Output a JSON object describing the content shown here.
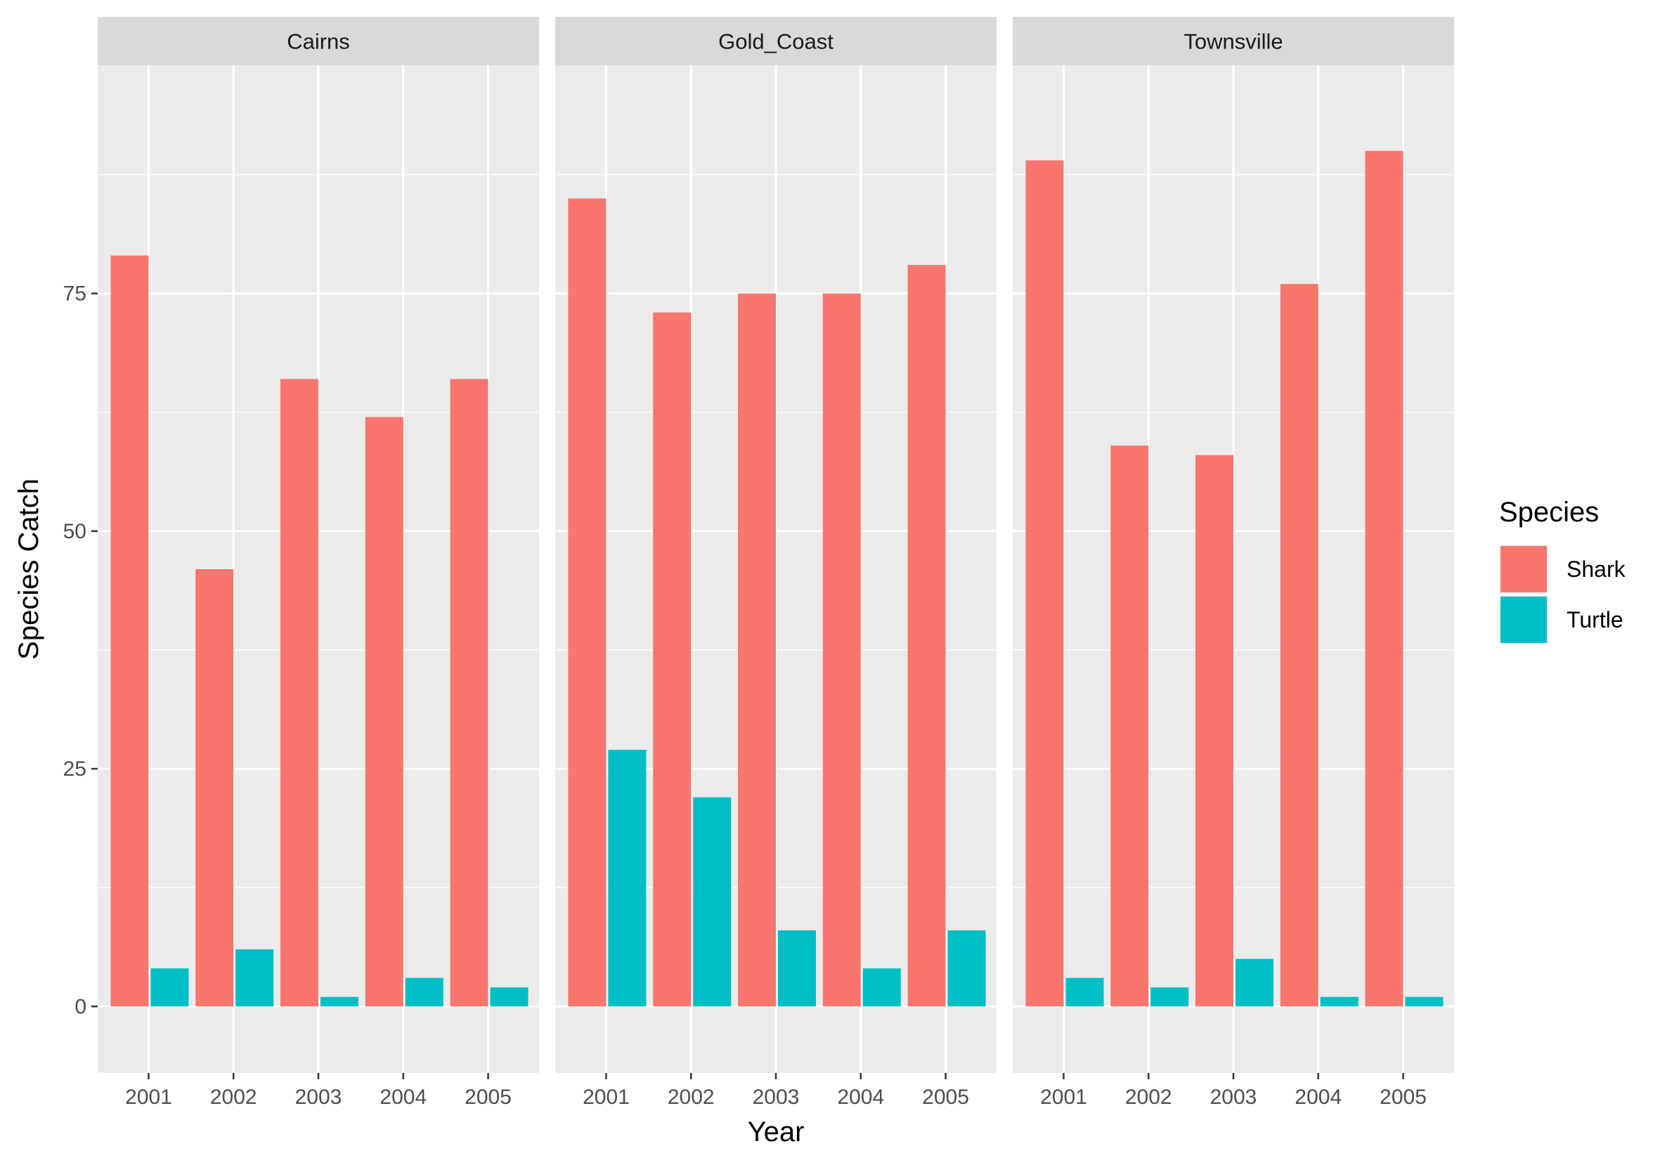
{
  "chart_data": {
    "type": "bar",
    "layout": "faceted",
    "xlabel": "Year",
    "ylabel": "Species Catch",
    "ylim": [
      -7,
      99
    ],
    "yticks": [
      0,
      25,
      50,
      75
    ],
    "categories": [
      "2001",
      "2002",
      "2003",
      "2004",
      "2005"
    ],
    "legend": {
      "title": "Species",
      "position": "right",
      "items": [
        {
          "label": "Shark",
          "color": "#F8766D"
        },
        {
          "label": "Turtle",
          "color": "#00BFC4"
        }
      ]
    },
    "facets": [
      {
        "name": "Cairns",
        "series": [
          {
            "name": "Shark",
            "values": [
              79,
              46,
              66,
              62,
              66
            ]
          },
          {
            "name": "Turtle",
            "values": [
              4,
              6,
              1,
              3,
              2
            ]
          }
        ]
      },
      {
        "name": "Gold_Coast",
        "series": [
          {
            "name": "Shark",
            "values": [
              85,
              73,
              75,
              75,
              78
            ]
          },
          {
            "name": "Turtle",
            "values": [
              27,
              22,
              8,
              4,
              8
            ]
          }
        ]
      },
      {
        "name": "Townsville",
        "series": [
          {
            "name": "Shark",
            "values": [
              89,
              59,
              58,
              76,
              90
            ]
          },
          {
            "name": "Turtle",
            "values": [
              3,
              2,
              5,
              1,
              1
            ]
          }
        ]
      }
    ],
    "grid": true,
    "colors": {
      "panel_bg": "#EBEBEB",
      "strip_bg": "#D9D9D9",
      "grid_line": "#FFFFFF",
      "axis_text": "#4D4D4D",
      "title_text": "#000000"
    }
  }
}
